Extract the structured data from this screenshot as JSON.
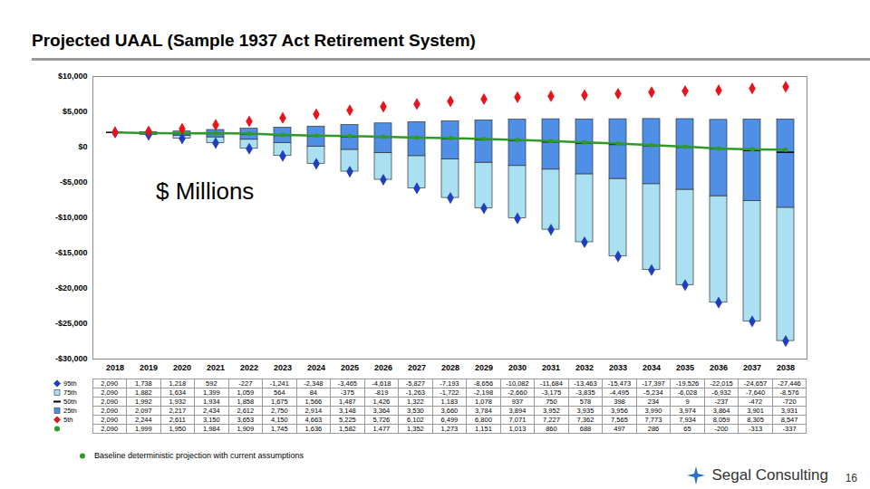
{
  "chart_data": {
    "type": "box",
    "title": "Projected UAAL (Sample 1937 Act Retirement System)",
    "annotation": "$ Millions",
    "categories": [
      "2018",
      "2019",
      "2020",
      "2021",
      "2022",
      "2023",
      "2024",
      "2025",
      "2026",
      "2027",
      "2028",
      "2029",
      "2030",
      "2031",
      "2032",
      "2033",
      "2034",
      "2035",
      "2036",
      "2037",
      "2038"
    ],
    "ylim": [
      -30000,
      10000
    ],
    "yticks": [
      {
        "value": 10000,
        "label": "$10,000"
      },
      {
        "value": 5000,
        "label": "$5,000"
      },
      {
        "value": 0,
        "label": "$0"
      },
      {
        "value": -5000,
        "label": "-$5,000"
      },
      {
        "value": -10000,
        "label": "-$10,000"
      },
      {
        "value": -15000,
        "label": "-$15,000"
      },
      {
        "value": -20000,
        "label": "-$20,000"
      },
      {
        "value": -25000,
        "label": "-$25,000"
      },
      {
        "value": -30000,
        "label": "-$30,000"
      }
    ],
    "grid": false,
    "series": [
      {
        "name": "95th",
        "type": "scatter",
        "marker": "diamond",
        "color": "#1f3fbf",
        "values": [
          2090,
          1738,
          1218,
          592,
          -227,
          -1241,
          -2348,
          -3465,
          -4618,
          -5827,
          -7193,
          -8656,
          -10082,
          -11684,
          -13463,
          -15473,
          -17397,
          -19526,
          -22015,
          -24657,
          -27446
        ],
        "value_labels": [
          "2,090",
          "1,738",
          "1,218",
          "592",
          "-227",
          "-1,241",
          "-2,348",
          "-3,465",
          "-4,618",
          "-5,827",
          "-7,193",
          "-8,656",
          "-10,082",
          "-11,684",
          "-13,463",
          "-15,473",
          "-17,397",
          "-19,526",
          "-22,015",
          "-24,657",
          "-27,446"
        ]
      },
      {
        "name": "75th",
        "type": "box",
        "marker": "square",
        "color": "#a9e0f2",
        "values": [
          2090,
          1882,
          1634,
          1399,
          1059,
          564,
          84,
          -375,
          -819,
          -1263,
          -1722,
          -2198,
          -2660,
          -3175,
          -3835,
          -4495,
          -5234,
          -6028,
          -6932,
          -7640,
          -8576
        ],
        "value_labels": [
          "2,090",
          "1,882",
          "1,634",
          "1,399",
          "1,059",
          "564",
          "84",
          "-375",
          "-819",
          "-1,263",
          "-1,722",
          "-2,198",
          "-2,660",
          "-3,175",
          "-3,835",
          "-4,495",
          "-5,234",
          "-6,028",
          "-6,932",
          "-7,640",
          "-8,576"
        ]
      },
      {
        "name": "50th",
        "type": "tick",
        "marker": "dash",
        "color": "#000000",
        "values": [
          2090,
          1992,
          1932,
          1934,
          1858,
          1675,
          1566,
          1487,
          1426,
          1322,
          1183,
          1078,
          937,
          750,
          578,
          398,
          234,
          9,
          -237,
          -472,
          -720
        ],
        "value_labels": [
          "2,090",
          "1,992",
          "1,932",
          "1,934",
          "1,858",
          "1,675",
          "1,566",
          "1,487",
          "1,426",
          "1,322",
          "1,183",
          "1,078",
          "937",
          "750",
          "578",
          "398",
          "234",
          "9",
          "-237",
          "-472",
          "-720"
        ]
      },
      {
        "name": "25th",
        "type": "box",
        "marker": "square",
        "color": "#4f8fe6",
        "values": [
          2090,
          2097,
          2217,
          2434,
          2612,
          2750,
          2914,
          3148,
          3364,
          3530,
          3660,
          3784,
          3894,
          3952,
          3935,
          3956,
          3990,
          3974,
          3864,
          3901,
          3931
        ],
        "value_labels": [
          "2,090",
          "2,097",
          "2,217",
          "2,434",
          "2,612",
          "2,750",
          "2,914",
          "3,148",
          "3,364",
          "3,530",
          "3,660",
          "3,784",
          "3,894",
          "3,952",
          "3,935",
          "3,956",
          "3,990",
          "3,974",
          "3,864",
          "3,901",
          "3,931"
        ]
      },
      {
        "name": "5th",
        "type": "scatter",
        "marker": "diamond",
        "color": "#e8141c",
        "values": [
          2090,
          2244,
          2611,
          3150,
          3653,
          4150,
          4663,
          5225,
          5726,
          6102,
          6499,
          6800,
          7071,
          7227,
          7362,
          7565,
          7773,
          7934,
          8059,
          8305,
          8547
        ],
        "value_labels": [
          "2,090",
          "2,244",
          "2,611",
          "3,150",
          "3,653",
          "4,150",
          "4,663",
          "5,225",
          "5,726",
          "6,102",
          "6,499",
          "6,800",
          "7,071",
          "7,227",
          "7,362",
          "7,565",
          "7,773",
          "7,934",
          "8,059",
          "8,305",
          "8,547"
        ]
      },
      {
        "name": "Baseline deterministic projection with current assumptions",
        "type": "line",
        "marker": "circle",
        "color": "#2f9a2a",
        "values": [
          2090,
          1999,
          1950,
          1984,
          1909,
          1745,
          1636,
          1582,
          1477,
          1352,
          1273,
          1151,
          1013,
          860,
          688,
          497,
          286,
          65,
          -200,
          -313,
          -337
        ],
        "value_labels": [
          "2,090",
          "1,999",
          "1,950",
          "1,984",
          "1,909",
          "1,745",
          "1,636",
          "1,582",
          "1,477",
          "1,352",
          "1,273",
          "1,151",
          "1,013",
          "860",
          "688",
          "497",
          "286",
          "65",
          "-200",
          "-313",
          "-337"
        ]
      }
    ]
  },
  "footer": {
    "brand": "Segal Consulting",
    "page_number": "16"
  }
}
